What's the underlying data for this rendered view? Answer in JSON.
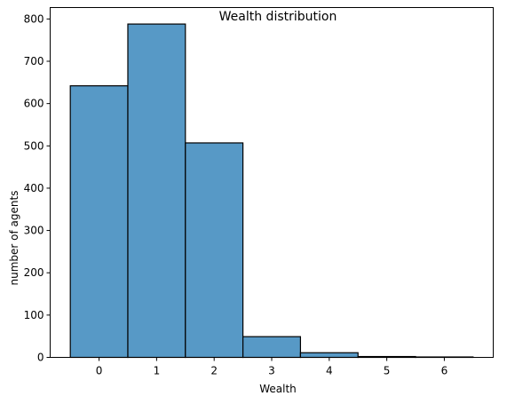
{
  "chart_data": {
    "type": "bar",
    "title": "Wealth distribution",
    "xlabel": "Wealth",
    "ylabel": "number of agents",
    "categories": [
      "0",
      "1",
      "2",
      "3",
      "4",
      "5",
      "6"
    ],
    "values": [
      642,
      788,
      507,
      49,
      11,
      2,
      1
    ],
    "xticks": [
      "0",
      "1",
      "2",
      "3",
      "4",
      "5",
      "6"
    ],
    "yticks": [
      "0",
      "100",
      "200",
      "300",
      "400",
      "500",
      "600",
      "700",
      "800"
    ],
    "xlim": [
      -0.85,
      6.85
    ],
    "ylim": [
      0,
      827
    ],
    "grid": false,
    "bar_color": "#5799c6",
    "edge_color": "#000000"
  }
}
